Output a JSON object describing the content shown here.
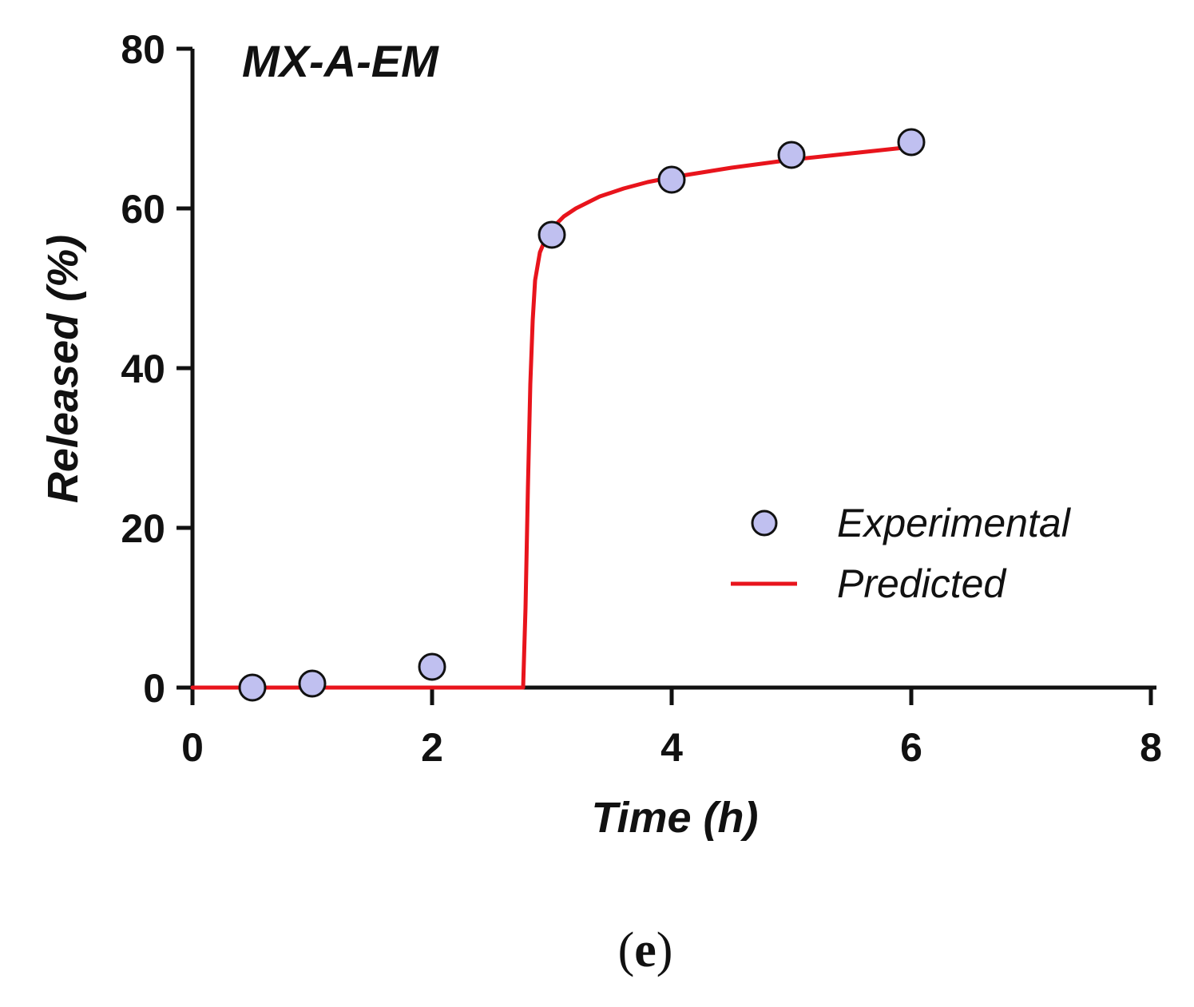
{
  "chart_data": {
    "type": "scatter",
    "title": "MX-A-EM",
    "xlabel": "Time (h)",
    "ylabel": "Released (%)",
    "xlim": [
      0,
      8
    ],
    "ylim": [
      0,
      80
    ],
    "xticks": [
      0,
      2,
      4,
      6,
      8
    ],
    "yticks": [
      0,
      20,
      40,
      60,
      80
    ],
    "grid": false,
    "legend_position": "right-middle",
    "series": [
      {
        "name": "Experimental",
        "kind": "scatter",
        "color": "#c0c0f0",
        "edge_color": "#111111",
        "x": [
          0.5,
          1,
          2,
          3,
          4,
          5,
          6
        ],
        "y": [
          0.0,
          0.5,
          2.6,
          56.7,
          63.6,
          66.7,
          68.3
        ]
      },
      {
        "name": "Predicted",
        "kind": "line",
        "color": "#e8141c",
        "x": [
          0,
          2.76,
          2.78,
          2.8,
          2.82,
          2.84,
          2.86,
          2.9,
          2.95,
          3.0,
          3.1,
          3.2,
          3.4,
          3.6,
          3.8,
          4.0,
          4.5,
          5.0,
          5.5,
          6.0
        ],
        "y": [
          0,
          0,
          10,
          25,
          38,
          46,
          51,
          54.5,
          56.3,
          57.5,
          59.0,
          60.0,
          61.5,
          62.5,
          63.3,
          63.9,
          65.1,
          66.1,
          66.9,
          67.7
        ]
      }
    ]
  },
  "panel_label": {
    "open": "(",
    "letter": "e",
    "close": ")"
  }
}
